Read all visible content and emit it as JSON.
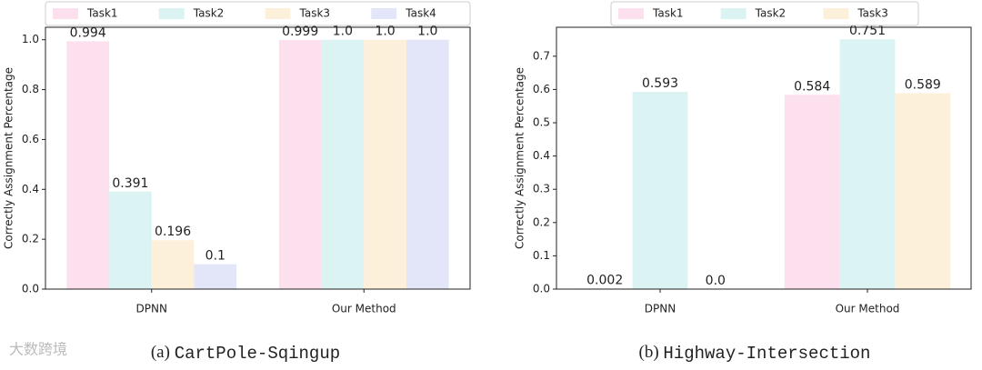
{
  "chart_data": [
    {
      "type": "bar",
      "caption": {
        "label": "(a)",
        "name": "CartPole-Sqingup"
      },
      "y_label": "Correctly Assignment Percentage",
      "categories": [
        "DPNN",
        "Our Method"
      ],
      "series": [
        {
          "name": "Task1",
          "color": "#fde0ee",
          "values": [
            0.994,
            0.999
          ],
          "value_labels": [
            "0.994",
            "0.999"
          ]
        },
        {
          "name": "Task2",
          "color": "#dcf3f3",
          "values": [
            0.391,
            1.0
          ],
          "value_labels": [
            "0.391",
            "1.0"
          ]
        },
        {
          "name": "Task3",
          "color": "#fdf0db",
          "values": [
            0.196,
            1.0
          ],
          "value_labels": [
            "0.196",
            "1.0"
          ]
        },
        {
          "name": "Task4",
          "color": "#e3e6f8",
          "values": [
            0.1,
            1.0
          ],
          "value_labels": [
            "0.1",
            "1.0"
          ]
        }
      ],
      "ylim": [
        0,
        1.05
      ],
      "yticks": [
        {
          "value": 0,
          "label": "0.0"
        },
        0.2,
        0.4,
        0.6,
        0.8,
        {
          "value": 1,
          "label": "1.0"
        }
      ],
      "legend": "top"
    },
    {
      "type": "bar",
      "caption": {
        "label": "(b)",
        "name": "Highway-Intersection"
      },
      "y_label": "Correctly Assignment Percentage",
      "categories": [
        "DPNN",
        "Our Method"
      ],
      "series": [
        {
          "name": "Task1",
          "color": "#fde0ee",
          "values": [
            0.002,
            0.584
          ],
          "value_labels": [
            "0.002",
            "0.584"
          ]
        },
        {
          "name": "Task2",
          "color": "#dcf3f3",
          "values": [
            0.593,
            0.751
          ],
          "value_labels": [
            "0.593",
            "0.751"
          ]
        },
        {
          "name": "Task3",
          "color": "#fdf0db",
          "values": [
            0,
            0.589
          ],
          "value_labels": [
            "0.0",
            "0.589"
          ]
        }
      ],
      "ylim": [
        0,
        0.787
      ],
      "yticks": [
        {
          "value": 0,
          "label": "0.0"
        },
        0.1,
        0.2,
        0.3,
        0.4,
        0.5,
        0.6,
        0.7
      ],
      "legend": "top"
    }
  ],
  "watermark": "大数跨境"
}
